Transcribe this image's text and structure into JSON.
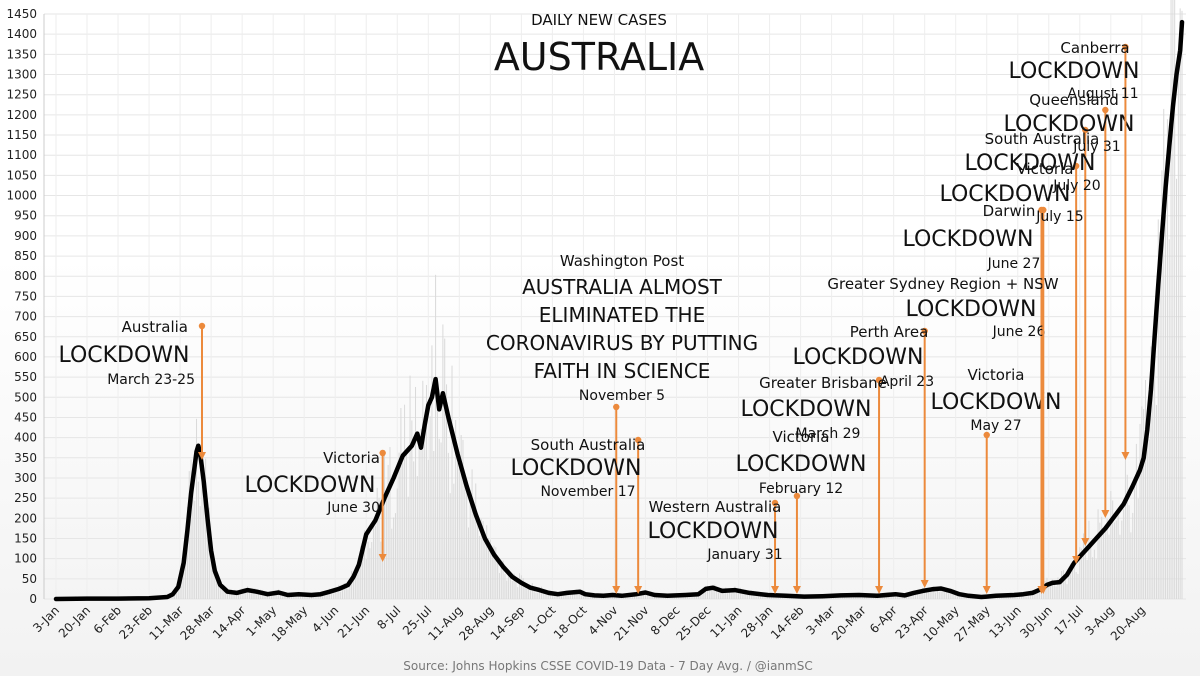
{
  "chart_data": {
    "type": "line",
    "title": "AUSTRALIA",
    "subtitle": "DAILY NEW CASES",
    "source": "Source: Johns Hopkins CSSE COVID-19 Data - 7 Day Avg. / @ianmSC",
    "ylim": [
      0,
      1450
    ],
    "y_ticks": [
      0,
      50,
      100,
      150,
      200,
      250,
      300,
      350,
      400,
      450,
      500,
      550,
      600,
      650,
      700,
      750,
      800,
      850,
      900,
      950,
      1000,
      1050,
      1100,
      1150,
      1200,
      1250,
      1300,
      1350,
      1400,
      1450
    ],
    "x_ticks": [
      "3-Jan",
      "20-Jan",
      "6-Feb",
      "23-Feb",
      "11-Mar",
      "28-Mar",
      "14-Apr",
      "1-May",
      "18-May",
      "4-Jun",
      "21-Jun",
      "8-Jul",
      "25-Jul",
      "11-Aug",
      "28-Aug",
      "14-Sep",
      "1-Oct",
      "18-Oct",
      "4-Nov",
      "21-Nov",
      "8-Dec",
      "25-Dec",
      "11-Jan",
      "28-Jan",
      "14-Feb",
      "3-Mar",
      "20-Mar",
      "6-Apr",
      "23-Apr",
      "10-May",
      "27-May",
      "13-Jun",
      "30-Jun",
      "17-Jul",
      "3-Aug",
      "20-Aug"
    ],
    "grid": true,
    "series": [
      {
        "values": [
          [
            0,
            0
          ],
          [
            17,
            1
          ],
          [
            34,
            1
          ],
          [
            51,
            2
          ],
          [
            61,
            5
          ],
          [
            64,
            12
          ],
          [
            67,
            30
          ],
          [
            70,
            90
          ],
          [
            72,
            170
          ],
          [
            74,
            260
          ],
          [
            76,
            330
          ],
          [
            77,
            365
          ],
          [
            78,
            380
          ],
          [
            79,
            360
          ],
          [
            81,
            290
          ],
          [
            83,
            200
          ],
          [
            85,
            120
          ],
          [
            87,
            70
          ],
          [
            90,
            35
          ],
          [
            94,
            18
          ],
          [
            99,
            15
          ],
          [
            105,
            22
          ],
          [
            110,
            18
          ],
          [
            116,
            12
          ],
          [
            122,
            16
          ],
          [
            127,
            10
          ],
          [
            133,
            12
          ],
          [
            140,
            10
          ],
          [
            145,
            12
          ],
          [
            150,
            18
          ],
          [
            155,
            25
          ],
          [
            160,
            35
          ],
          [
            163,
            55
          ],
          [
            166,
            85
          ],
          [
            170,
            160
          ],
          [
            175,
            195
          ],
          [
            180,
            250
          ],
          [
            185,
            300
          ],
          [
            190,
            355
          ],
          [
            195,
            380
          ],
          [
            198,
            410
          ],
          [
            200,
            375
          ],
          [
            202,
            430
          ],
          [
            204,
            480
          ],
          [
            206,
            500
          ],
          [
            208,
            545
          ],
          [
            210,
            470
          ],
          [
            212,
            510
          ],
          [
            215,
            450
          ],
          [
            220,
            360
          ],
          [
            225,
            280
          ],
          [
            230,
            210
          ],
          [
            235,
            150
          ],
          [
            240,
            110
          ],
          [
            245,
            80
          ],
          [
            250,
            55
          ],
          [
            255,
            40
          ],
          [
            260,
            28
          ],
          [
            265,
            22
          ],
          [
            270,
            15
          ],
          [
            275,
            12
          ],
          [
            280,
            15
          ],
          [
            287,
            18
          ],
          [
            290,
            12
          ],
          [
            295,
            9
          ],
          [
            300,
            8
          ],
          [
            305,
            10
          ],
          [
            310,
            8
          ],
          [
            318,
            12
          ],
          [
            323,
            16
          ],
          [
            328,
            10
          ],
          [
            335,
            8
          ],
          [
            340,
            9
          ],
          [
            345,
            10
          ],
          [
            352,
            12
          ],
          [
            356,
            25
          ],
          [
            360,
            28
          ],
          [
            365,
            20
          ],
          [
            372,
            22
          ],
          [
            380,
            15
          ],
          [
            390,
            10
          ],
          [
            400,
            8
          ],
          [
            410,
            6
          ],
          [
            420,
            7
          ],
          [
            430,
            9
          ],
          [
            440,
            10
          ],
          [
            450,
            8
          ],
          [
            460,
            12
          ],
          [
            465,
            9
          ],
          [
            470,
            15
          ],
          [
            475,
            20
          ],
          [
            480,
            24
          ],
          [
            485,
            26
          ],
          [
            490,
            20
          ],
          [
            495,
            12
          ],
          [
            500,
            8
          ],
          [
            507,
            5
          ],
          [
            510,
            6
          ],
          [
            515,
            8
          ],
          [
            525,
            10
          ],
          [
            530,
            12
          ],
          [
            535,
            15
          ],
          [
            540,
            25
          ],
          [
            543,
            35
          ],
          [
            546,
            40
          ],
          [
            550,
            42
          ],
          [
            554,
            60
          ],
          [
            558,
            90
          ],
          [
            562,
            110
          ],
          [
            566,
            130
          ],
          [
            570,
            150
          ],
          [
            575,
            175
          ],
          [
            580,
            205
          ],
          [
            585,
            235
          ],
          [
            590,
            280
          ],
          [
            594,
            320
          ],
          [
            596,
            350
          ],
          [
            598,
            420
          ],
          [
            600,
            520
          ],
          [
            602,
            650
          ],
          [
            604,
            780
          ],
          [
            606,
            900
          ],
          [
            608,
            1020
          ],
          [
            610,
            1120
          ],
          [
            612,
            1220
          ],
          [
            614,
            1300
          ],
          [
            616,
            1360
          ],
          [
            617,
            1430
          ]
        ]
      }
    ],
    "annotations": [
      {
        "name": "Australia",
        "label": "LOCKDOWN",
        "date": "March 23-25",
        "day": 80
      },
      {
        "name": "Victoria",
        "label": "LOCKDOWN",
        "date": "June 30",
        "day": 179
      },
      {
        "name": "Washington Post",
        "label": "AUSTRALIA ALMOST ELIMINATED THE CORONAVIRUS BY PUTTING FAITH IN SCIENCE",
        "date": "November 5",
        "day": 307
      },
      {
        "name": "South Australia",
        "label": "LOCKDOWN",
        "date": "November 17",
        "day": 319
      },
      {
        "name": "Western Australia",
        "label": "LOCKDOWN",
        "date": "January 31",
        "day": 394
      },
      {
        "name": "Victoria",
        "label": "LOCKDOWN",
        "date": "February 12",
        "day": 406
      },
      {
        "name": "Greater Brisbane",
        "label": "LOCKDOWN",
        "date": "March 29",
        "day": 451
      },
      {
        "name": "Perth Area",
        "label": "LOCKDOWN",
        "date": "April 23",
        "day": 476
      },
      {
        "name": "Victoria",
        "label": "LOCKDOWN",
        "date": "May 27",
        "day": 510
      },
      {
        "name": "Greater Sydney Region + NSW",
        "label": "LOCKDOWN",
        "date": "June 26",
        "day": 540
      },
      {
        "name": "Darwin",
        "label": "LOCKDOWN",
        "date": "June 27",
        "day": 541
      },
      {
        "name": "Victoria",
        "label": "LOCKDOWN",
        "date": "July 15",
        "day": 559
      },
      {
        "name": "South Australia",
        "label": "LOCKDOWN",
        "date": "July 20",
        "day": 564
      },
      {
        "name": "Queensland",
        "label": "LOCKDOWN",
        "date": "July 31",
        "day": 575
      },
      {
        "name": "Canberra",
        "label": "LOCKDOWN",
        "date": "August 11",
        "day": 586
      }
    ],
    "line_color": "#000000",
    "annotation_color": "#ec8a3c"
  }
}
